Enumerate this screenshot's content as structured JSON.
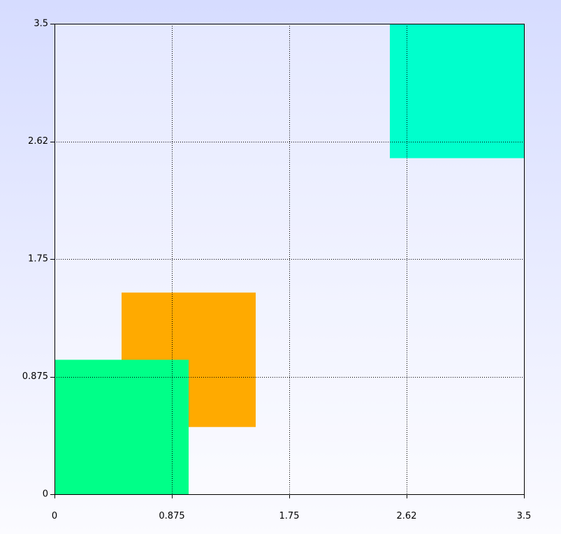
{
  "chart_data": {
    "type": "rectangles",
    "xlim": [
      0,
      3.5
    ],
    "ylim": [
      0,
      3.5
    ],
    "grid": true,
    "grid_style": "dotted",
    "x_ticks": [
      {
        "value": 0,
        "label": "0"
      },
      {
        "value": 0.875,
        "label": "0.875"
      },
      {
        "value": 1.75,
        "label": "1.75"
      },
      {
        "value": 2.625,
        "label": "2.62"
      },
      {
        "value": 3.5,
        "label": "3.5"
      }
    ],
    "y_ticks": [
      {
        "value": 0,
        "label": "0"
      },
      {
        "value": 0.875,
        "label": "0.875"
      },
      {
        "value": 1.75,
        "label": "1.75"
      },
      {
        "value": 2.625,
        "label": "2.62"
      },
      {
        "value": 3.5,
        "label": "3.5"
      }
    ],
    "rects": [
      {
        "x0": 0.5,
        "x1": 1.5,
        "y0": 0.5,
        "y1": 1.5,
        "color": "#ffaa00"
      },
      {
        "x0": 0.0,
        "x1": 1.0,
        "y0": 0.0,
        "y1": 1.0,
        "color": "#00ff88"
      },
      {
        "x0": 2.5,
        "x1": 3.5,
        "y0": 2.5,
        "y1": 3.5,
        "color": "#00ffcc"
      }
    ]
  }
}
